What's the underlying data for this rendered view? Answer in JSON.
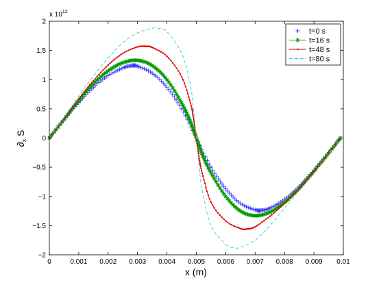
{
  "chart_data": {
    "type": "line",
    "title": "",
    "xlabel": "x (m)",
    "ylabel_main": "∂",
    "ylabel_sub": "x",
    "ylabel_tail": " S",
    "y_multiplier_base": "x 10",
    "y_multiplier_exp": "12",
    "xlim": [
      0,
      0.01
    ],
    "ylim": [
      -2,
      2
    ],
    "grid": false,
    "legend_position": "top-right",
    "x_ticks": [
      0,
      0.001,
      0.002,
      0.003,
      0.004,
      0.005,
      0.006,
      0.007,
      0.008,
      0.009,
      0.01
    ],
    "x_tick_labels": [
      "0",
      "0.001",
      "0.002",
      "0.003",
      "0.004",
      "0.005",
      "0.006",
      "0.007",
      "0.008",
      "0.009",
      "0.01"
    ],
    "y_ticks": [
      -2,
      -1.5,
      -1,
      -0.5,
      0,
      0.5,
      1,
      1.5,
      2
    ],
    "y_tick_labels": [
      "−2",
      "−1.5",
      "−1",
      "−0.5",
      "0",
      "0.5",
      "1",
      "1.5",
      "2"
    ],
    "series": [
      {
        "name": "t=0 s",
        "color": "#3333ff",
        "marker": "plus",
        "x": [
          0,
          0.0005,
          0.001,
          0.0015,
          0.002,
          0.0025,
          0.0028,
          0.003,
          0.0035,
          0.004,
          0.0045,
          0.005,
          0.0055,
          0.006,
          0.0065,
          0.007,
          0.0072,
          0.0075,
          0.008,
          0.0085,
          0.009,
          0.0095,
          0.0099
        ],
        "y": [
          0,
          0.31,
          0.61,
          0.87,
          1.07,
          1.2,
          1.24,
          1.23,
          1.11,
          0.87,
          0.5,
          0,
          -0.5,
          -0.87,
          -1.12,
          -1.23,
          -1.24,
          -1.2,
          -1.05,
          -0.83,
          -0.55,
          -0.25,
          0
        ]
      },
      {
        "name": "t=16 s",
        "color": "#009900",
        "marker": "star",
        "x": [
          0,
          0.0005,
          0.001,
          0.0015,
          0.002,
          0.0025,
          0.003,
          0.0035,
          0.004,
          0.0045,
          0.0048,
          0.005,
          0.0052,
          0.0055,
          0.006,
          0.0065,
          0.007,
          0.0075,
          0.008,
          0.0085,
          0.009,
          0.0095,
          0.0099
        ],
        "y": [
          0,
          0.32,
          0.64,
          0.93,
          1.15,
          1.29,
          1.33,
          1.24,
          1.0,
          0.6,
          0.28,
          0,
          -0.28,
          -0.6,
          -1.0,
          -1.25,
          -1.33,
          -1.27,
          -1.1,
          -0.86,
          -0.57,
          -0.26,
          0
        ]
      },
      {
        "name": "t=48 s",
        "color": "#dd0000",
        "marker": "dot",
        "x": [
          0,
          0.0005,
          0.001,
          0.0015,
          0.002,
          0.0025,
          0.003,
          0.0033,
          0.0035,
          0.004,
          0.0045,
          0.0048,
          0.0049,
          0.005,
          0.0051,
          0.0052,
          0.0055,
          0.006,
          0.0065,
          0.0067,
          0.007,
          0.0075,
          0.008,
          0.0085,
          0.009,
          0.0095,
          0.0099
        ],
        "y": [
          0,
          0.33,
          0.67,
          0.98,
          1.25,
          1.45,
          1.56,
          1.57,
          1.55,
          1.4,
          1.05,
          0.6,
          0.35,
          0,
          -0.35,
          -0.6,
          -1.1,
          -1.42,
          -1.55,
          -1.56,
          -1.52,
          -1.34,
          -1.12,
          -0.87,
          -0.58,
          -0.27,
          0
        ]
      },
      {
        "name": "t=80 s",
        "color": "#33cccc",
        "marker": "dash",
        "x": [
          0,
          0.0005,
          0.001,
          0.0015,
          0.002,
          0.0025,
          0.003,
          0.0035,
          0.0037,
          0.004,
          0.0045,
          0.0048,
          0.0049,
          0.005,
          0.0051,
          0.0052,
          0.0055,
          0.006,
          0.0063,
          0.0065,
          0.007,
          0.0075,
          0.008,
          0.0085,
          0.009,
          0.0095,
          0.0099
        ],
        "y": [
          0,
          0.35,
          0.72,
          1.06,
          1.37,
          1.63,
          1.8,
          1.88,
          1.88,
          1.82,
          1.45,
          0.9,
          0.5,
          0,
          -0.5,
          -0.9,
          -1.5,
          -1.82,
          -1.88,
          -1.87,
          -1.75,
          -1.5,
          -1.2,
          -0.9,
          -0.6,
          -0.28,
          0
        ]
      }
    ]
  }
}
